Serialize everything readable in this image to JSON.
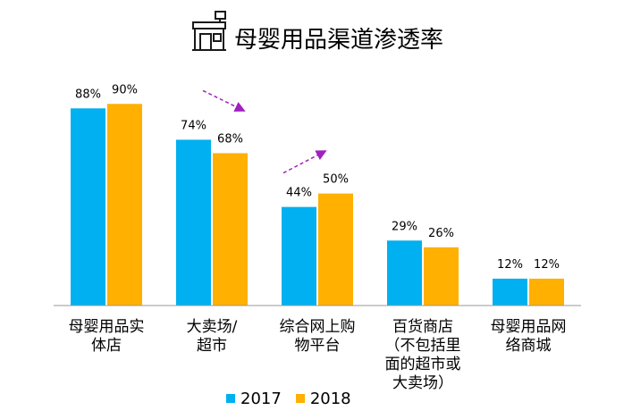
{
  "title": "母婴用品渠道渗透率",
  "chart_data": {
    "type": "bar",
    "title": "母婴用品渠道渗透率",
    "categories": [
      "母婴用品实体店",
      "大卖场/超市",
      "综合网上购物平台",
      "百货商店（不包括里面的超市或大卖场）",
      "母婴用品网络商城"
    ],
    "category_lines": [
      [
        "母婴用品实",
        "体店"
      ],
      [
        "大卖场/",
        "超市"
      ],
      [
        "综合网上购",
        "物平台"
      ],
      [
        "百货商店",
        "（不包括里",
        "面的超市或",
        "大卖场）"
      ],
      [
        "母婴用品网",
        "络商城"
      ]
    ],
    "series": [
      {
        "name": "2017",
        "values": [
          88,
          74,
          44,
          29,
          12
        ],
        "color": "#00B0F0"
      },
      {
        "name": "2018",
        "values": [
          90,
          68,
          50,
          26,
          12
        ],
        "color": "#FFB000"
      }
    ],
    "data_labels": [
      [
        "88%",
        "74%",
        "44%",
        "29%",
        "12%"
      ],
      [
        "90%",
        "68%",
        "50%",
        "26%",
        "12%"
      ]
    ],
    "ylim": [
      0,
      100
    ],
    "xlabel": "",
    "ylabel": "",
    "grid": false,
    "legend_position": "bottom",
    "annotations": [
      {
        "type": "trend-arrow",
        "category": "大卖场/超市",
        "direction": "down",
        "color": "#A020C0"
      },
      {
        "type": "trend-arrow",
        "category": "综合网上购物平台",
        "direction": "up",
        "color": "#A020C0"
      }
    ]
  },
  "legend": {
    "items": [
      "2017",
      "2018"
    ]
  }
}
